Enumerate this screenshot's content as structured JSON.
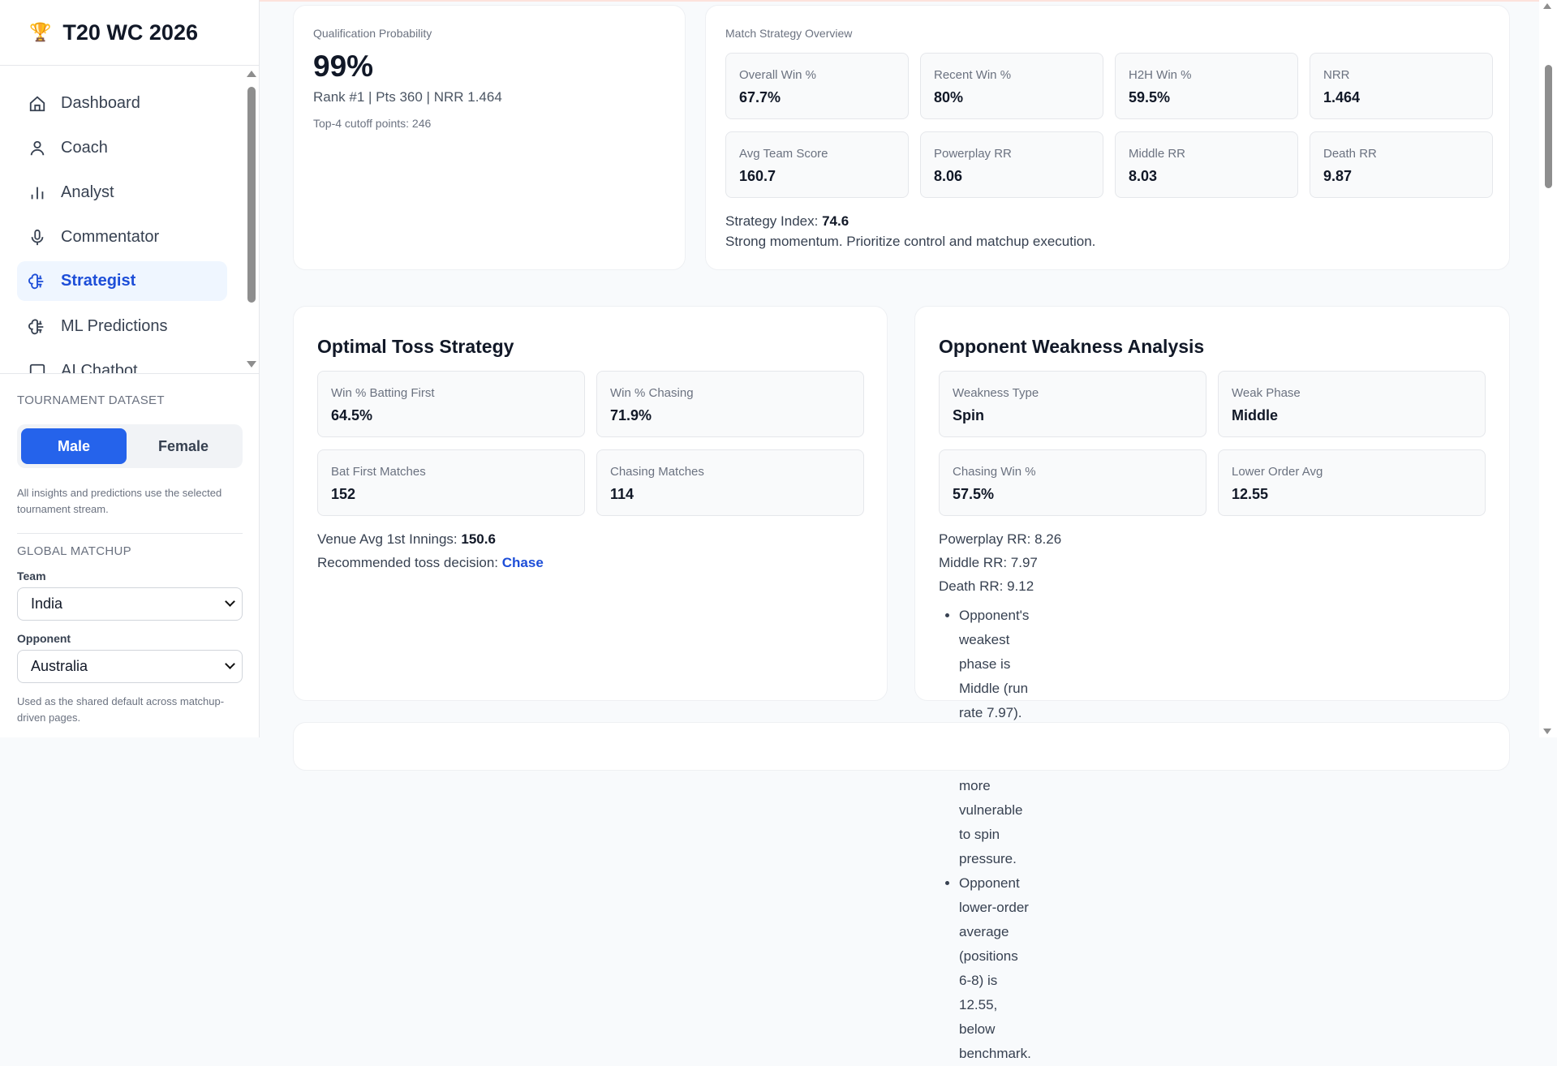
{
  "app": {
    "title": "T20 WC 2026",
    "logo_icon": "trophy-icon"
  },
  "sidebar": {
    "items": [
      {
        "label": "Dashboard",
        "icon": "home-icon"
      },
      {
        "label": "Coach",
        "icon": "user-icon"
      },
      {
        "label": "Analyst",
        "icon": "bar-chart-icon"
      },
      {
        "label": "Commentator",
        "icon": "microphone-icon"
      },
      {
        "label": "Strategist",
        "icon": "brain-icon",
        "active": true
      },
      {
        "label": "ML Predictions",
        "icon": "brain-icon"
      },
      {
        "label": "AI Chatbot",
        "icon": "chat-icon"
      }
    ],
    "dataset": {
      "label": "TOURNAMENT DATASET",
      "options": [
        "Male",
        "Female"
      ],
      "selected": "Male",
      "hint": "All insights and predictions use the selected tournament stream."
    },
    "matchup": {
      "label": "GLOBAL MATCHUP",
      "team_label": "Team",
      "team": "India",
      "opponent_label": "Opponent",
      "opponent": "Australia",
      "hint": "Used as the shared default across matchup-driven pages."
    }
  },
  "qualification": {
    "label": "Qualification Probability",
    "value": "99%",
    "summary": "Rank #1 | Pts 360 | NRR 1.464",
    "cutoff": "Top-4 cutoff points: 246"
  },
  "overview": {
    "title": "Match Strategy Overview",
    "stats": [
      {
        "label": "Overall Win %",
        "value": "67.7%"
      },
      {
        "label": "Recent Win %",
        "value": "80%"
      },
      {
        "label": "H2H Win %",
        "value": "59.5%"
      },
      {
        "label": "NRR",
        "value": "1.464"
      },
      {
        "label": "Avg Team Score",
        "value": "160.7"
      },
      {
        "label": "Powerplay RR",
        "value": "8.06"
      },
      {
        "label": "Middle RR",
        "value": "8.03"
      },
      {
        "label": "Death RR",
        "value": "9.87"
      }
    ],
    "index_label": "Strategy Index:",
    "index_value": "74.6",
    "note": "Strong momentum. Prioritize control and matchup execution."
  },
  "toss": {
    "title": "Optimal Toss Strategy",
    "stats": [
      {
        "label": "Win % Batting First",
        "value": "64.5%"
      },
      {
        "label": "Win % Chasing",
        "value": "71.9%"
      },
      {
        "label": "Bat First Matches",
        "value": "152"
      },
      {
        "label": "Chasing Matches",
        "value": "114"
      }
    ],
    "venue_label": "Venue Avg 1st Innings:",
    "venue_value": "150.6",
    "decision_label": "Recommended toss decision:",
    "decision_value": "Chase"
  },
  "weakness": {
    "title": "Opponent Weakness Analysis",
    "stats": [
      {
        "label": "Weakness Type",
        "value": "Spin"
      },
      {
        "label": "Weak Phase",
        "value": "Middle"
      },
      {
        "label": "Chasing Win %",
        "value": "57.5%"
      },
      {
        "label": "Lower Order Avg",
        "value": "12.55"
      }
    ],
    "rates": [
      "Powerplay RR: 8.26",
      "Middle RR: 7.97",
      "Death RR: 9.12"
    ],
    "insights": [
      "Opponent's weakest phase is Middle (run rate 7.97).",
      "Opponent appears more vulnerable to spin pressure.",
      "Opponent lower-order average (positions 6-8) is 12.55, below benchmark."
    ]
  },
  "colors": {
    "accent": "#2563eb",
    "active_bg": "#eff6ff",
    "link": "#1d4ed8"
  }
}
